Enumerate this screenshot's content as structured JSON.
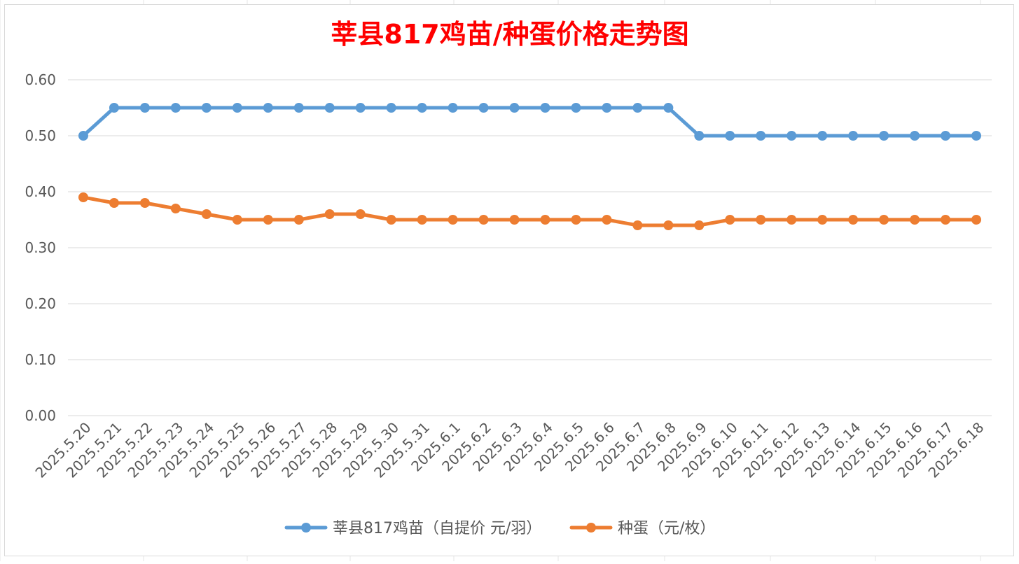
{
  "chart_data": {
    "type": "line",
    "title": "莘县817鸡苗/种蛋价格走势图",
    "x": [
      "2025.5.20",
      "2025.5.21",
      "2025.5.22",
      "2025.5.23",
      "2025.5.24",
      "2025.5.25",
      "2025.5.26",
      "2025.5.27",
      "2025.5.28",
      "2025.5.29",
      "2025.5.30",
      "2025.5.31",
      "2025.6.1",
      "2025.6.2",
      "2025.6.3",
      "2025.6.4",
      "2025.6.5",
      "2025.6.6",
      "2025.6.7",
      "2025.6.8",
      "2025.6.9",
      "2025.6.10",
      "2025.6.11",
      "2025.6.12",
      "2025.6.13",
      "2025.6.14",
      "2025.6.15",
      "2025.6.16",
      "2025.6.17",
      "2025.6.18"
    ],
    "series": [
      {
        "name": "莘县817鸡苗（自提价 元/羽）",
        "color": "#5B9BD5",
        "values": [
          0.5,
          0.55,
          0.55,
          0.55,
          0.55,
          0.55,
          0.55,
          0.55,
          0.55,
          0.55,
          0.55,
          0.55,
          0.55,
          0.55,
          0.55,
          0.55,
          0.55,
          0.55,
          0.55,
          0.55,
          0.5,
          0.5,
          0.5,
          0.5,
          0.5,
          0.5,
          0.5,
          0.5,
          0.5,
          0.5
        ]
      },
      {
        "name": "种蛋（元/枚）",
        "color": "#ED7D31",
        "values": [
          0.39,
          0.38,
          0.38,
          0.37,
          0.36,
          0.35,
          0.35,
          0.35,
          0.36,
          0.36,
          0.35,
          0.35,
          0.35,
          0.35,
          0.35,
          0.35,
          0.35,
          0.35,
          0.34,
          0.34,
          0.34,
          0.35,
          0.35,
          0.35,
          0.35,
          0.35,
          0.35,
          0.35,
          0.35,
          0.35
        ]
      }
    ],
    "yticks": [
      "0.00",
      "0.10",
      "0.20",
      "0.30",
      "0.40",
      "0.50",
      "0.60"
    ],
    "ylim": [
      0,
      0.6
    ],
    "grid": true,
    "legend": "bottom",
    "title_color": "#FF0000"
  }
}
